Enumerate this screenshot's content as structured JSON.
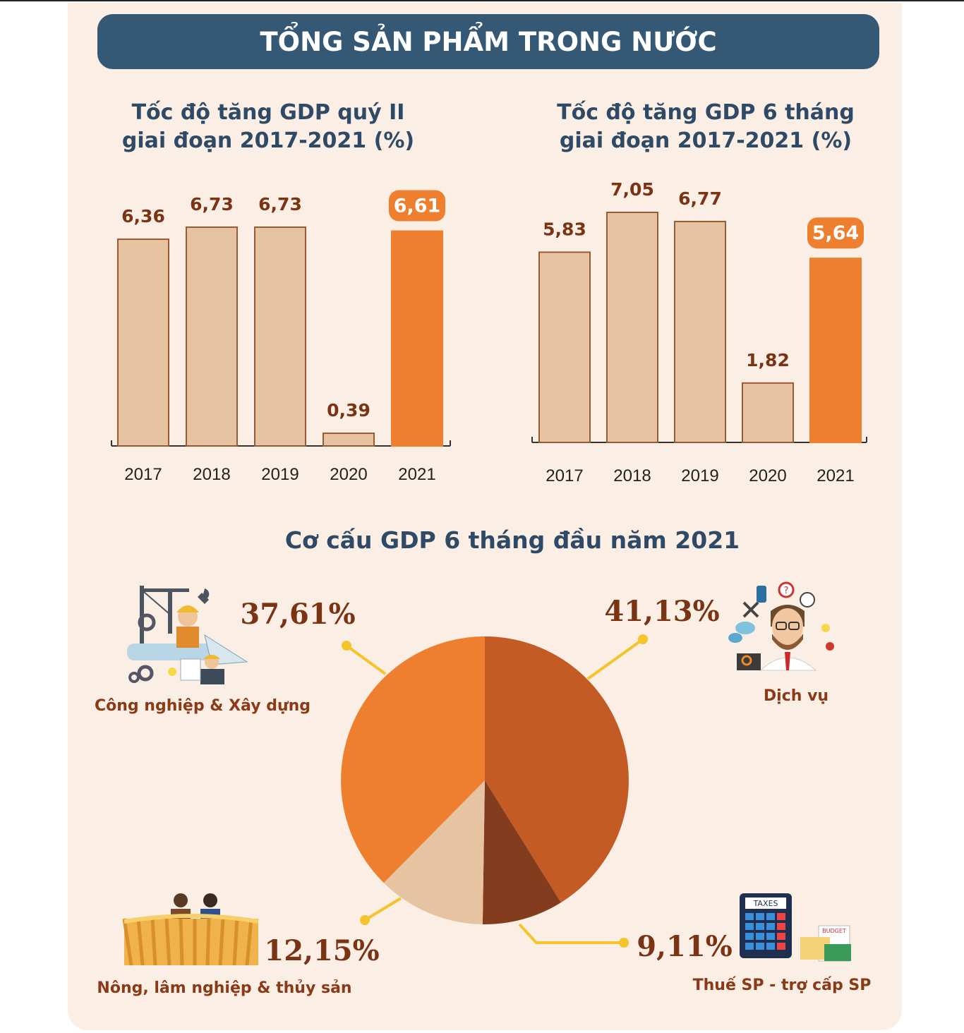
{
  "header": {
    "title": "TỔNG SẢN PHẨM TRONG NƯỚC"
  },
  "colors": {
    "bar": "#e6c3a1",
    "highlight": "#ee7f2f",
    "value_text": "#7a3414",
    "title": "#2f4a66",
    "banner": "#355874"
  },
  "chart_data": [
    {
      "type": "bar",
      "title_line1": "Tốc độ tăng GDP quý II",
      "title_line2": "giai đoạn 2017-2021 (%)",
      "categories": [
        "2017",
        "2018",
        "2019",
        "2020",
        "2021"
      ],
      "values": [
        6.36,
        6.73,
        6.73,
        0.39,
        6.61
      ],
      "labels": [
        "6,36",
        "6,73",
        "6,73",
        "0,39",
        "6,61"
      ],
      "highlight_index": 4,
      "ylim": [
        0,
        7.5
      ]
    },
    {
      "type": "bar",
      "title_line1": "Tốc độ tăng GDP 6 tháng",
      "title_line2": "giai đoạn 2017-2021 (%)",
      "categories": [
        "2017",
        "2018",
        "2019",
        "2020",
        "2021"
      ],
      "values": [
        5.83,
        7.05,
        6.77,
        1.82,
        5.64
      ],
      "labels": [
        "5,83",
        "7,05",
        "6,77",
        "1,82",
        "5,64"
      ],
      "highlight_index": 4,
      "ylim": [
        0,
        7.5
      ]
    },
    {
      "type": "pie",
      "title": "Cơ cấu GDP 6 tháng đầu năm 2021",
      "slices": [
        {
          "name": "Dịch vụ",
          "value": 41.13,
          "label": "41,13%",
          "color": "#c45a24"
        },
        {
          "name": "Thuế SP - trợ cấp SP",
          "value": 9.11,
          "label": "9,11%",
          "color": "#843c1e"
        },
        {
          "name": "Nông, lâm nghiệp & thủy sản",
          "value": 12.15,
          "label": "12,15%",
          "color": "#e6c3a1"
        },
        {
          "name": "Công nghiệp & Xây dựng",
          "value": 37.61,
          "label": "37,61%",
          "color": "#ee7f2f"
        }
      ]
    }
  ],
  "icons": {
    "tax_calculator_text": "TAXES",
    "budget_text": "BUDGET"
  }
}
